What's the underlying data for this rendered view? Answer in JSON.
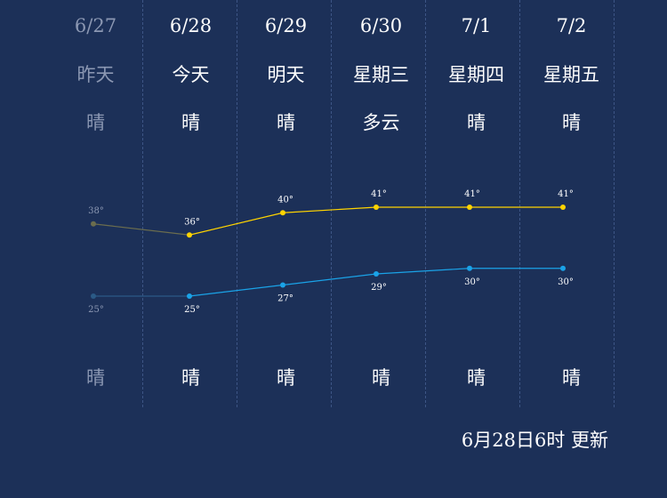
{
  "days": [
    {
      "date": "6/27",
      "name": "昨天",
      "cond_day": "晴",
      "cond_night": "晴",
      "high": 38,
      "low": 25,
      "past": true
    },
    {
      "date": "6/28",
      "name": "今天",
      "cond_day": "晴",
      "cond_night": "晴",
      "high": 36,
      "low": 25,
      "past": false
    },
    {
      "date": "6/29",
      "name": "明天",
      "cond_day": "晴",
      "cond_night": "晴",
      "high": 40,
      "low": 27,
      "past": false
    },
    {
      "date": "6/30",
      "name": "星期三",
      "cond_day": "多云",
      "cond_night": "晴",
      "high": 41,
      "low": 29,
      "past": false
    },
    {
      "date": "7/1",
      "name": "星期四",
      "cond_day": "晴",
      "cond_night": "晴",
      "high": 41,
      "low": 30,
      "past": false
    },
    {
      "date": "7/2",
      "name": "星期五",
      "cond_day": "晴",
      "cond_night": "晴",
      "high": 41,
      "low": 30,
      "past": false
    }
  ],
  "high_labels": [
    "38°",
    "36°",
    "40°",
    "41°",
    "41°",
    "41°"
  ],
  "low_labels": [
    "25°",
    "25°",
    "27°",
    "29°",
    "30°",
    "30°"
  ],
  "colors": {
    "background": "#1c3058",
    "high_line": "#ffd400",
    "low_line": "#1aa3e8",
    "past_high_line": "#6b6d4e",
    "past_low_line": "#2b5a86",
    "past_text": "#8c98b3"
  },
  "chart_data": {
    "type": "line",
    "categories": [
      "6/27",
      "6/28",
      "6/29",
      "6/30",
      "7/1",
      "7/2"
    ],
    "series": [
      {
        "values": [
          38,
          36,
          40,
          41,
          41,
          41
        ]
      },
      {
        "values": [
          25,
          25,
          27,
          29,
          30,
          30
        ]
      }
    ]
  },
  "update_text": "6月28日6时 更新"
}
